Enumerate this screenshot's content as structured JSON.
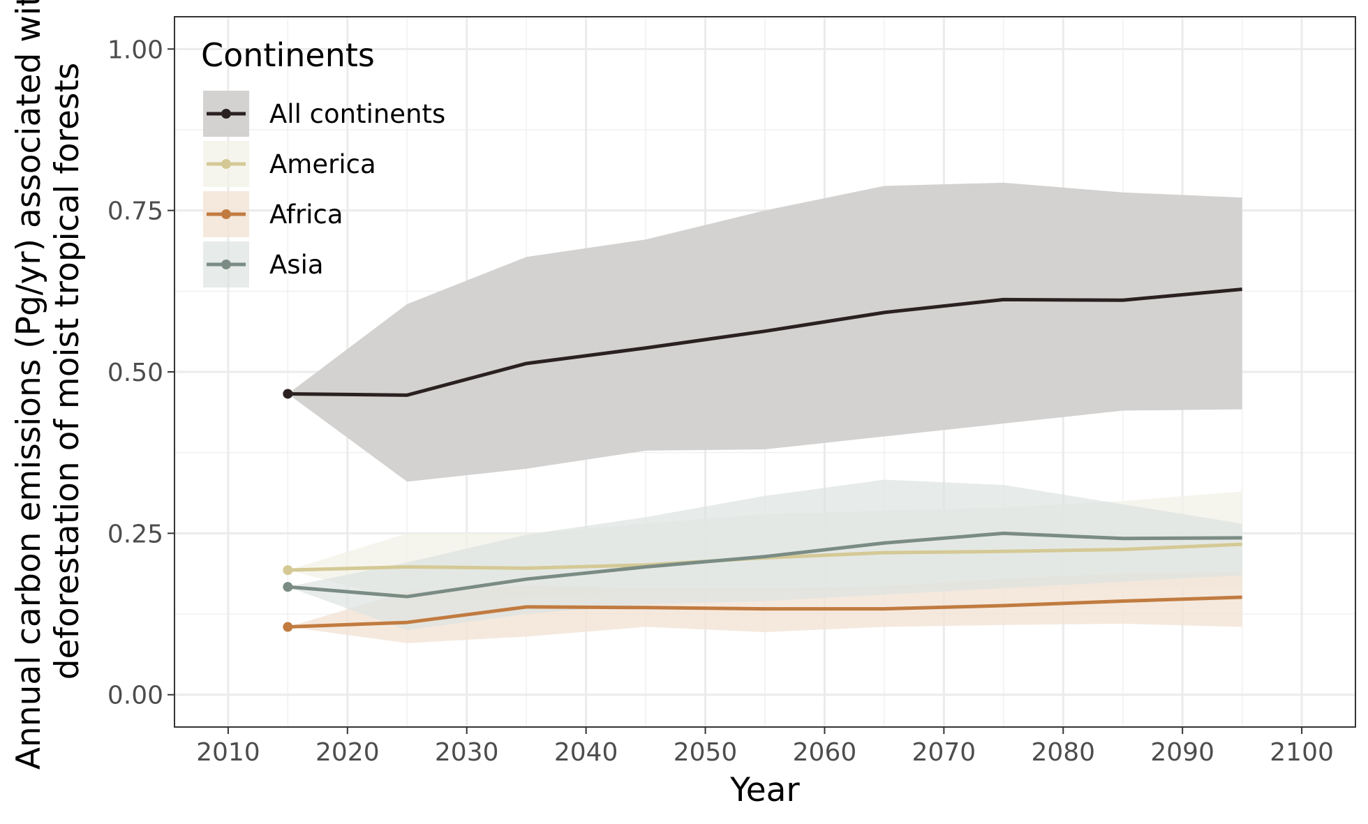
{
  "chart_data": {
    "type": "line",
    "xlabel": "Year",
    "ylabel_lines": [
      "Annual carbon emissions (Pg/yr) associated with",
      "deforestation of moist tropical forests"
    ],
    "xlim": [
      2005.5,
      2104.5
    ],
    "ylim": [
      -0.05,
      1.05
    ],
    "x_ticks": [
      2010,
      2020,
      2030,
      2040,
      2050,
      2060,
      2070,
      2080,
      2090,
      2100
    ],
    "x_tick_labels": [
      "2010",
      "2020",
      "2030",
      "2040",
      "2050",
      "2060",
      "2070",
      "2080",
      "2090",
      "2100"
    ],
    "y_ticks": [
      0,
      0.25,
      0.5,
      0.75,
      1.0
    ],
    "y_tick_labels": [
      "0.00",
      "0.25",
      "0.50",
      "0.75",
      "1.00"
    ],
    "grid": true,
    "legend": {
      "title": "Continents",
      "placement": "top-left"
    },
    "x": [
      2015,
      2025,
      2035,
      2045,
      2055,
      2065,
      2075,
      2085,
      2095
    ],
    "series": [
      {
        "name": "All continents",
        "color": "#2b2121",
        "fill": "#d3d2d1",
        "fill_opacity": 1.0,
        "values": [
          0.466,
          0.464,
          0.513,
          0.537,
          0.563,
          0.592,
          0.612,
          0.611,
          0.628
        ],
        "lower": [
          0.466,
          0.33,
          0.35,
          0.378,
          0.38,
          0.4,
          0.42,
          0.44,
          0.442
        ],
        "upper": [
          0.466,
          0.605,
          0.678,
          0.705,
          0.75,
          0.788,
          0.793,
          0.778,
          0.77
        ]
      },
      {
        "name": "America",
        "color": "#d4c995",
        "fill": "#f3f1e7",
        "fill_opacity": 0.75,
        "values": [
          0.193,
          0.198,
          0.196,
          0.201,
          0.212,
          0.22,
          0.222,
          0.225,
          0.233
        ],
        "lower": [
          0.193,
          0.145,
          0.15,
          0.16,
          0.162,
          0.163,
          0.163,
          0.165,
          0.165
        ],
        "upper": [
          0.193,
          0.25,
          0.25,
          0.265,
          0.28,
          0.285,
          0.29,
          0.3,
          0.315
        ]
      },
      {
        "name": "Africa",
        "color": "#c17b40",
        "fill": "#f3e4d6",
        "fill_opacity": 0.8,
        "values": [
          0.105,
          0.112,
          0.136,
          0.135,
          0.133,
          0.133,
          0.138,
          0.145,
          0.151
        ],
        "lower": [
          0.105,
          0.08,
          0.09,
          0.105,
          0.097,
          0.105,
          0.108,
          0.11,
          0.105
        ],
        "upper": [
          0.105,
          0.16,
          0.17,
          0.165,
          0.165,
          0.168,
          0.18,
          0.188,
          0.19
        ]
      },
      {
        "name": "Asia",
        "color": "#7a8c84",
        "fill": "#dde3e1",
        "fill_opacity": 0.7,
        "values": [
          0.167,
          0.152,
          0.179,
          0.198,
          0.214,
          0.235,
          0.25,
          0.242,
          0.243
        ],
        "lower": [
          0.167,
          0.1,
          0.125,
          0.14,
          0.145,
          0.155,
          0.165,
          0.175,
          0.185
        ],
        "upper": [
          0.167,
          0.205,
          0.248,
          0.275,
          0.308,
          0.333,
          0.325,
          0.295,
          0.265
        ]
      }
    ]
  }
}
